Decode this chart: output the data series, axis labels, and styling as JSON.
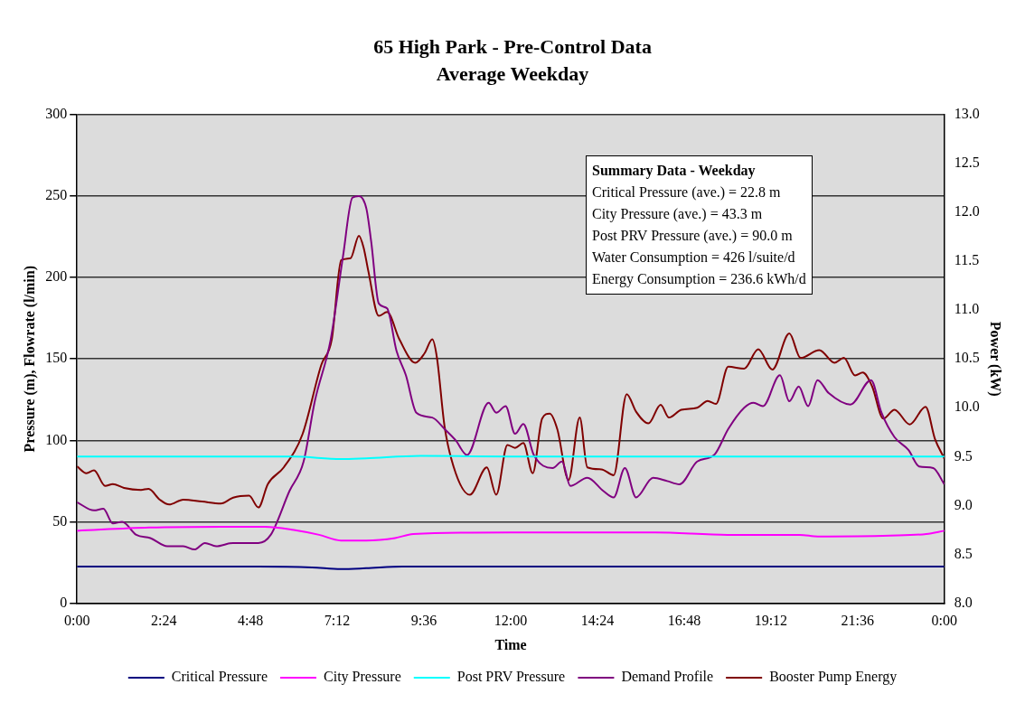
{
  "chart_data": {
    "type": "line",
    "title": "65 High Park - Pre-Control Data",
    "subtitle": "Average Weekday",
    "xlabel": "Time",
    "ylabel": "Pressure (m), Flowrate (l/min)",
    "y2label": "Power (kW)",
    "xlim": [
      0,
      24
    ],
    "xticks": [
      {
        "value": 0,
        "label": "0:00"
      },
      {
        "value": 2.4,
        "label": "2:24"
      },
      {
        "value": 4.8,
        "label": "4:48"
      },
      {
        "value": 7.2,
        "label": "7:12"
      },
      {
        "value": 9.6,
        "label": "9:36"
      },
      {
        "value": 12,
        "label": "12:00"
      },
      {
        "value": 14.4,
        "label": "14:24"
      },
      {
        "value": 16.8,
        "label": "16:48"
      },
      {
        "value": 19.2,
        "label": "19:12"
      },
      {
        "value": 21.6,
        "label": "21:36"
      },
      {
        "value": 24,
        "label": "0:00"
      }
    ],
    "ylim": [
      0,
      300
    ],
    "yticks": [
      0,
      50,
      100,
      150,
      200,
      250,
      300
    ],
    "y2lim": [
      8,
      13
    ],
    "y2ticks": [
      {
        "value": 8,
        "label": "8.0"
      },
      {
        "value": 8.5,
        "label": "8.5"
      },
      {
        "value": 9,
        "label": "9.0"
      },
      {
        "value": 9.5,
        "label": "9.5"
      },
      {
        "value": 10,
        "label": "10.0"
      },
      {
        "value": 10.5,
        "label": "10.5"
      },
      {
        "value": 11,
        "label": "11.0"
      },
      {
        "value": 11.5,
        "label": "11.5"
      },
      {
        "value": 12,
        "label": "12.0"
      },
      {
        "value": 12.5,
        "label": "12.5"
      },
      {
        "value": 13,
        "label": "13.0"
      }
    ],
    "grid": "y",
    "legend": "bottom",
    "marker": "none",
    "line_style": "solid",
    "annotations": [
      "Summary Data - Weekday",
      "Critical Pressure (ave.) = 22.8 m",
      "City Pressure (ave.) = 43.3 m",
      "Post PRV Pressure (ave.) = 90.0 m",
      "Water Consumption = 426 l/suite/d",
      "Energy Consumption = 236.6 kWh/d"
    ],
    "series": [
      {
        "name": "Critical Pressure",
        "color": "#000080",
        "x": [
          0,
          5,
          6.5,
          7.3,
          8,
          9,
          12,
          16,
          20,
          24
        ],
        "values": [
          22.5,
          22.5,
          22,
          21,
          21.5,
          22.5,
          22.5,
          22.5,
          22.5,
          22.5
        ]
      },
      {
        "name": "City Pressure",
        "color": "#ff00ff",
        "x": [
          0,
          2,
          4,
          5.2,
          6,
          6.7,
          7.3,
          8,
          8.8,
          9.3,
          12,
          16,
          18,
          20,
          20.5,
          22.5,
          23.5,
          24
        ],
        "values": [
          44.5,
          46.5,
          47,
          47,
          45,
          42,
          38.5,
          38.5,
          40,
          42.5,
          43.5,
          43.5,
          42,
          42,
          41,
          41.5,
          42.5,
          44.5
        ]
      },
      {
        "name": "Post PRV Pressure",
        "color": "#00ffff",
        "x": [
          0,
          6,
          7.3,
          8,
          9.5,
          12,
          24
        ],
        "values": [
          90,
          90,
          88.5,
          89,
          90.5,
          90,
          90
        ]
      },
      {
        "name": "Demand Profile",
        "color": "#800080",
        "x": [
          0,
          0.47,
          0.73,
          0.99,
          1.25,
          1.64,
          2.03,
          2.5,
          2.94,
          3.25,
          3.54,
          3.85,
          4.32,
          5.02,
          5.36,
          5.88,
          6.27,
          6.58,
          7.02,
          7.36,
          7.62,
          7.8,
          8.01,
          8.14,
          8.35,
          8.58,
          8.84,
          9.1,
          9.39,
          9.83,
          10.17,
          10.48,
          10.79,
          11.39,
          11.6,
          11.86,
          12.12,
          12.35,
          12.64,
          13.16,
          13.42,
          13.65,
          14.12,
          14.56,
          14.85,
          15.16,
          15.47,
          15.94,
          16.33,
          16.67,
          17.16,
          17.63,
          18.02,
          18.46,
          18.72,
          18.98,
          19.45,
          19.71,
          19.97,
          20.23,
          20.49,
          20.8,
          21.4,
          21.97,
          22.26,
          22.62,
          23.01,
          23.3,
          23.69,
          24
        ],
        "values": [
          62,
          57,
          58,
          49,
          50,
          42,
          40,
          35,
          35,
          33,
          37,
          35,
          37,
          37,
          42,
          69,
          87,
          124,
          162,
          213,
          249,
          250,
          242,
          222,
          184,
          181,
          155,
          140,
          117,
          114,
          107,
          100,
          91,
          123,
          117,
          121,
          104,
          110,
          91,
          83,
          87,
          72,
          77,
          69,
          65,
          83,
          65,
          77,
          75,
          73,
          87,
          91,
          107,
          120,
          123,
          121,
          140,
          124,
          133,
          121,
          137,
          129,
          122,
          137,
          117,
          102,
          94,
          84,
          83,
          73
        ]
      },
      {
        "name": "Booster Pump Energy",
        "color": "#800000",
        "axis": "y2",
        "x": [
          0,
          0.26,
          0.47,
          0.78,
          0.99,
          1.3,
          1.77,
          1.98,
          2.29,
          2.55,
          2.94,
          3.46,
          3.98,
          4.32,
          4.76,
          5.02,
          5.28,
          5.72,
          6.24,
          6.76,
          7.05,
          7.31,
          7.57,
          7.8,
          7.93,
          8.06,
          8.35,
          8.58,
          8.92,
          9.36,
          9.62,
          9.83,
          9.96,
          10.17,
          10.48,
          10.87,
          11.34,
          11.6,
          11.91,
          12.12,
          12.35,
          12.61,
          12.87,
          13.08,
          13.29,
          13.6,
          13.91,
          14.12,
          14.51,
          14.85,
          15.21,
          15.47,
          15.81,
          16.15,
          16.38,
          16.72,
          17.16,
          17.45,
          17.68,
          18.02,
          18.46,
          18.85,
          19.24,
          19.71,
          20.02,
          20.54,
          20.96,
          21.22,
          21.53,
          21.74,
          22,
          22.31,
          22.62,
          23.04,
          23.48,
          23.74,
          24
        ],
        "values": [
          9.4,
          9.33,
          9.36,
          9.2,
          9.22,
          9.18,
          9.16,
          9.17,
          9.06,
          9.01,
          9.06,
          9.04,
          9.02,
          9.08,
          9.1,
          8.98,
          9.22,
          9.39,
          9.73,
          10.44,
          10.7,
          11.51,
          11.53,
          11.76,
          11.64,
          11.4,
          10.94,
          10.98,
          10.7,
          10.46,
          10.56,
          10.7,
          10.51,
          9.81,
          9.33,
          9.11,
          9.39,
          9.11,
          9.62,
          9.59,
          9.64,
          9.33,
          9.89,
          9.94,
          9.78,
          9.26,
          9.9,
          9.39,
          9.37,
          9.31,
          10.14,
          9.96,
          9.84,
          10.03,
          9.9,
          9.98,
          10,
          10.07,
          10.04,
          10.42,
          10.4,
          10.6,
          10.39,
          10.76,
          10.51,
          10.59,
          10.46,
          10.51,
          10.33,
          10.36,
          10.22,
          9.89,
          9.98,
          9.83,
          10.01,
          9.68,
          9.48
        ]
      }
    ]
  }
}
